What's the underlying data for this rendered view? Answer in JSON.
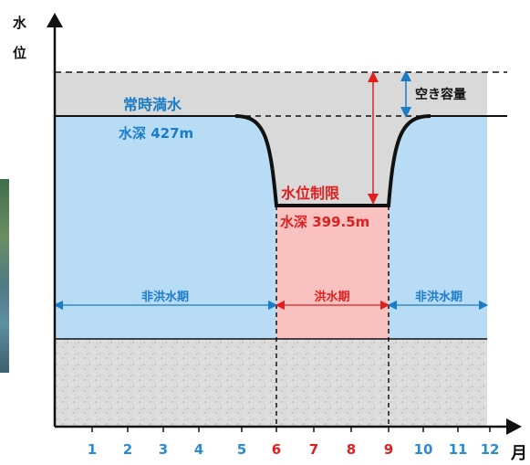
{
  "y_axis_label_line1": "水",
  "y_axis_label_line2": "位",
  "x_axis_unit": "月",
  "normal_full_label": "常時満水",
  "normal_depth_label": "水深 427m",
  "limit_label": "水位制限",
  "limit_depth_label": "水深 399.5m",
  "vacancy_label": "空き容量",
  "periods": [
    "非洪水期",
    "洪水期",
    "非洪水期"
  ],
  "months": [
    "1",
    "2",
    "3",
    "4",
    "5",
    "6",
    "7",
    "8",
    "9",
    "10",
    "11",
    "12"
  ],
  "colors": {
    "water": "#b8dcf6",
    "flood_period": "#f9c2c0",
    "gray_space": "#d9d9d9",
    "blue_text": "#1a7cc7",
    "red": "#e0201f",
    "month_blue": "#2a8bd1",
    "month_red": "#e0201f"
  }
}
